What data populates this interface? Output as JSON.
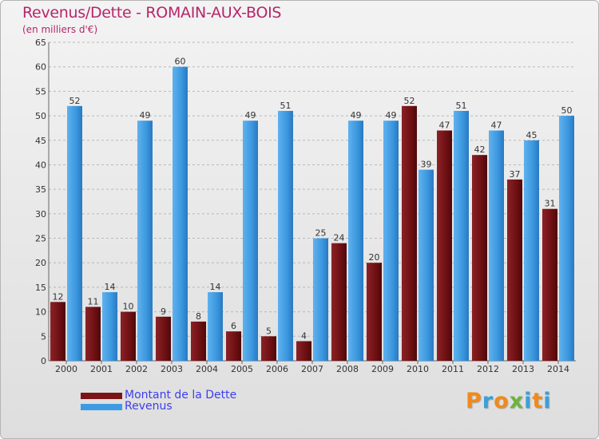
{
  "chart_data": {
    "type": "bar",
    "title": "Revenus/Dette - ROMAIN-AUX-BOIS",
    "subtitle": "(en milliers d'€)",
    "categories": [
      "2000",
      "2001",
      "2002",
      "2003",
      "2004",
      "2005",
      "2006",
      "2007",
      "2008",
      "2009",
      "2010",
      "2011",
      "2012",
      "2013",
      "2014"
    ],
    "series": [
      {
        "name": "Montant de la Dette",
        "color": "#7a1418",
        "values": [
          12,
          11,
          10,
          9,
          8,
          6,
          5,
          4,
          24,
          20,
          52,
          47,
          42,
          37,
          31
        ]
      },
      {
        "name": "Revenus",
        "color": "#3d9be3",
        "values": [
          52,
          14,
          49,
          60,
          14,
          49,
          51,
          25,
          49,
          49,
          39,
          51,
          47,
          45,
          50
        ]
      }
    ],
    "ylim": [
      0,
      65
    ],
    "yticks": [
      0,
      5,
      10,
      15,
      20,
      25,
      30,
      35,
      40,
      45,
      50,
      55,
      60,
      65
    ],
    "grid": true,
    "legend_position": "bottom-left",
    "data_labels": true
  },
  "logo": {
    "text": "Proxiti",
    "colors": [
      "#f08a1c",
      "#3aa0d8",
      "#f08a1c",
      "#6db33f",
      "#3aa0d8",
      "#f08a1c",
      "#3aa0d8"
    ]
  }
}
